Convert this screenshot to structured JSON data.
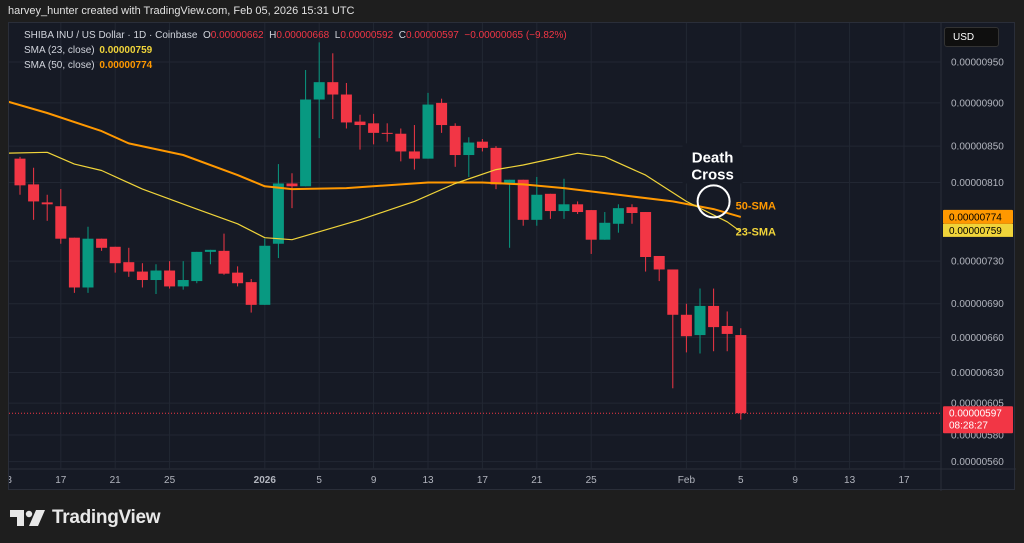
{
  "credit": "harvey_hunter created with TradingView.com, Feb 05, 2026 15:31 UTC",
  "legend": {
    "symbol": "SHIBA INU / US Dollar · 1D · Coinbase",
    "o_label": "O",
    "o": "0.00000662",
    "h_label": "H",
    "h": "0.00000668",
    "l_label": "L",
    "l": "0.00000592",
    "c_label": "C",
    "c": "0.00000597",
    "change": "−0.00000065 (−9.82%)",
    "sma23_label": "SMA (23, close)",
    "sma23_value": "0.00000759",
    "sma50_label": "SMA (50, close)",
    "sma50_value": "0.00000774"
  },
  "currency": "USD",
  "footer": {
    "logo_text": "TradingView"
  },
  "colors": {
    "up": "#089981",
    "down": "#f23645",
    "sma50": "#ff9800",
    "sma23": "#f0d43a",
    "background": "#161a25",
    "grid": "#222733"
  },
  "chart_data": {
    "type": "candlestick",
    "symbol": "SHIBA INU / US Dollar",
    "interval": "1D",
    "y_scale": "log",
    "ylim": [
      5.45e-06,
      9.85e-06
    ],
    "price_unit": 1e-08,
    "y_ticks": [
      "0.00000950",
      "0.00000900",
      "0.00000850",
      "0.00000810",
      "0.00000730",
      "0.00000690",
      "0.00000660",
      "0.00000630",
      "0.00000605",
      "0.00000580",
      "0.00000560"
    ],
    "x_ticks": [
      {
        "date": "2025-12-13",
        "label": "13"
      },
      {
        "date": "2025-12-17",
        "label": "17"
      },
      {
        "date": "2025-12-21",
        "label": "21"
      },
      {
        "date": "2025-12-25",
        "label": "25"
      },
      {
        "date": "2026-01-01",
        "label": "2026"
      },
      {
        "date": "2026-01-05",
        "label": "5"
      },
      {
        "date": "2026-01-09",
        "label": "9"
      },
      {
        "date": "2026-01-13",
        "label": "13"
      },
      {
        "date": "2026-01-17",
        "label": "17"
      },
      {
        "date": "2026-01-21",
        "label": "21"
      },
      {
        "date": "2026-01-25",
        "label": "25"
      },
      {
        "date": "2026-02-01",
        "label": "Feb"
      },
      {
        "date": "2026-02-05",
        "label": "5"
      },
      {
        "date": "2026-02-09",
        "label": "9"
      },
      {
        "date": "2026-02-13",
        "label": "13"
      },
      {
        "date": "2026-02-17",
        "label": "17"
      }
    ],
    "candles_columns": [
      "date",
      "open",
      "high",
      "low",
      "close"
    ],
    "candles": [
      [
        "2025-12-14",
        836,
        838,
        797,
        807
      ],
      [
        "2025-12-15",
        808,
        826,
        771,
        790
      ],
      [
        "2025-12-16",
        789,
        797,
        770,
        787
      ],
      [
        "2025-12-17",
        785,
        803,
        747,
        752
      ],
      [
        "2025-12-18",
        753,
        753,
        700,
        705
      ],
      [
        "2025-12-19",
        705,
        764,
        700,
        752
      ],
      [
        "2025-12-20",
        752,
        752,
        740,
        743
      ],
      [
        "2025-12-21",
        744,
        744,
        719,
        728
      ],
      [
        "2025-12-22",
        729,
        743,
        715,
        720
      ],
      [
        "2025-12-23",
        720,
        728,
        705,
        712
      ],
      [
        "2025-12-24",
        712,
        727,
        699,
        721
      ],
      [
        "2025-12-25",
        721,
        730,
        704,
        706
      ],
      [
        "2025-12-26",
        706,
        730,
        703,
        712
      ],
      [
        "2025-12-27",
        711,
        739,
        709,
        739
      ],
      [
        "2025-12-28",
        739,
        741,
        727,
        741
      ],
      [
        "2025-12-29",
        740,
        757,
        717,
        718
      ],
      [
        "2025-12-30",
        719,
        725,
        706,
        709
      ],
      [
        "2025-12-31",
        710,
        713,
        682,
        689
      ],
      [
        "2026-01-01",
        689,
        752,
        689,
        745
      ],
      [
        "2026-01-02",
        747,
        830,
        733,
        809
      ],
      [
        "2026-01-03",
        809,
        820,
        783,
        806
      ],
      [
        "2026-01-04",
        806,
        940,
        806,
        904
      ],
      [
        "2026-01-05",
        904,
        975,
        859,
        925
      ],
      [
        "2026-01-06",
        925,
        961,
        881,
        910
      ],
      [
        "2026-01-07",
        910,
        924,
        870,
        877
      ],
      [
        "2026-01-08",
        878,
        886,
        846,
        874
      ],
      [
        "2026-01-09",
        876,
        887,
        852,
        865
      ],
      [
        "2026-01-10",
        865,
        876,
        855,
        864
      ],
      [
        "2026-01-11",
        864,
        870,
        833,
        844
      ],
      [
        "2026-01-12",
        844,
        874,
        824,
        836
      ],
      [
        "2026-01-13",
        836,
        912,
        836,
        898
      ],
      [
        "2026-01-14",
        900,
        905,
        865,
        874
      ],
      [
        "2026-01-15",
        873,
        876,
        827,
        840
      ],
      [
        "2026-01-16",
        840,
        860,
        816,
        854
      ],
      [
        "2026-01-17",
        855,
        858,
        844,
        848
      ],
      [
        "2026-01-18",
        848,
        850,
        803,
        808
      ],
      [
        "2026-01-19",
        808,
        813,
        743,
        813
      ],
      [
        "2026-01-20",
        813,
        813,
        765,
        771
      ],
      [
        "2026-01-21",
        771,
        816,
        765,
        797
      ],
      [
        "2026-01-22",
        798,
        798,
        772,
        780
      ],
      [
        "2026-01-23",
        780,
        814,
        772,
        787
      ],
      [
        "2026-01-24",
        787,
        790,
        777,
        779
      ],
      [
        "2026-01-25",
        781,
        781,
        737,
        751
      ],
      [
        "2026-01-26",
        751,
        779,
        751,
        768
      ],
      [
        "2026-01-27",
        767,
        787,
        758,
        783
      ],
      [
        "2026-01-28",
        784,
        787,
        767,
        778
      ],
      [
        "2026-01-29",
        779,
        779,
        720,
        734
      ],
      [
        "2026-01-30",
        735,
        735,
        711,
        722
      ],
      [
        "2026-01-31",
        722,
        722,
        617,
        680
      ],
      [
        "2026-02-01",
        680,
        690,
        647,
        661
      ],
      [
        "2026-02-02",
        662,
        704,
        646,
        688
      ],
      [
        "2026-02-03",
        688,
        704,
        648,
        669
      ],
      [
        "2026-02-04",
        670,
        683,
        648,
        663
      ],
      [
        "2026-02-05",
        662,
        668,
        592,
        597
      ]
    ],
    "series": [
      {
        "name": "SMA (50, close)",
        "label": "50-SMA",
        "values": [
          [
            "2025-12-13",
            902
          ],
          [
            "2025-12-16",
            888
          ],
          [
            "2025-12-20",
            867
          ],
          [
            "2025-12-22",
            853
          ],
          [
            "2025-12-26",
            840
          ],
          [
            "2025-12-30",
            818
          ],
          [
            "2026-01-01",
            806
          ],
          [
            "2026-01-03",
            803
          ],
          [
            "2026-01-07",
            804
          ],
          [
            "2026-01-11",
            808
          ],
          [
            "2026-01-13",
            810
          ],
          [
            "2026-01-17",
            810
          ],
          [
            "2026-01-20",
            808
          ],
          [
            "2026-01-23",
            804
          ],
          [
            "2026-01-27",
            797
          ],
          [
            "2026-01-31",
            790
          ],
          [
            "2026-02-03",
            782
          ],
          [
            "2026-02-05",
            774
          ]
        ]
      },
      {
        "name": "SMA (23, close)",
        "label": "23-SMA",
        "values": [
          [
            "2025-12-13",
            842
          ],
          [
            "2025-12-16",
            843
          ],
          [
            "2025-12-18",
            830
          ],
          [
            "2025-12-20",
            823
          ],
          [
            "2025-12-23",
            803
          ],
          [
            "2025-12-27",
            782
          ],
          [
            "2025-12-30",
            767
          ],
          [
            "2026-01-01",
            753
          ],
          [
            "2026-01-03",
            751
          ],
          [
            "2026-01-08",
            771
          ],
          [
            "2026-01-12",
            790
          ],
          [
            "2026-01-15",
            809
          ],
          [
            "2026-01-18",
            824
          ],
          [
            "2026-01-20",
            829
          ],
          [
            "2026-01-24",
            842
          ],
          [
            "2026-01-26",
            838
          ],
          [
            "2026-01-29",
            818
          ],
          [
            "2026-02-01",
            790
          ],
          [
            "2026-02-04",
            769
          ],
          [
            "2026-02-05",
            759
          ]
        ]
      }
    ],
    "last_price": {
      "value": "0.00000597",
      "countdown": "08:28:27"
    },
    "sma_price_labels": {
      "sma50": "0.00000774",
      "sma23": "0.00000759"
    },
    "annotations": {
      "title": "Death Cross",
      "sma50_label": "50-SMA",
      "sma23_label": "23-SMA",
      "cross_date": "2026-02-03"
    }
  }
}
